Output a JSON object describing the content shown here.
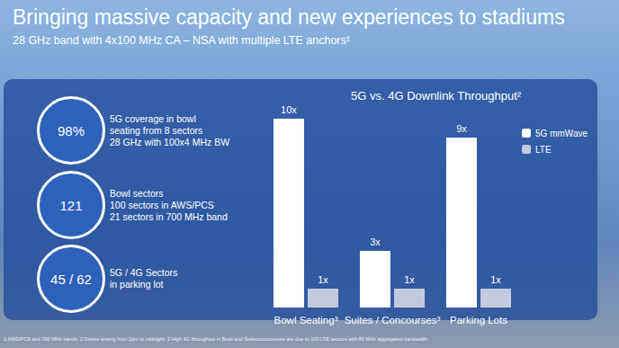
{
  "header": {
    "title": "Bringing massive capacity and new experiences to stadiums",
    "subtitle": "28 GHz band with 4x100 MHz CA – NSA with multiple LTE anchors¹"
  },
  "stats": [
    {
      "value": "98%",
      "lines": [
        "5G coverage in bowl",
        "seating from 8 sectors",
        "28 GHz with 100x4 MHz BW"
      ]
    },
    {
      "value": "121",
      "lines": [
        "Bowl sectors",
        "100 sectors in AWS/PCS",
        "21 sectors in 700 MHz band"
      ]
    },
    {
      "value": "45 / 62",
      "lines": [
        "5G / 4G Sectors",
        "in parking lot"
      ]
    }
  ],
  "footnote": "1 AWS/PCS and 700 MHz bands; 2 Device testing from 2pm to midnight; 3 High 4G throughput in Bowl and Suites/concourses are due to 100 LTE sectors with 80 MHz aggregated bandwidth",
  "chart_data": {
    "type": "bar",
    "title": "5G vs. 4G Downlink Throughput²",
    "categories": [
      "Bowl Seating³",
      "Suites / Concourses³",
      "Parking Lots"
    ],
    "series": [
      {
        "name": "5G mmWave",
        "color": "#ffffff",
        "values": [
          10,
          3,
          9
        ],
        "value_labels": [
          "10x",
          "3x",
          "9x"
        ]
      },
      {
        "name": "LTE",
        "color": "#c3cade",
        "values": [
          1,
          1,
          1
        ],
        "value_labels": [
          "1x",
          "1x",
          "1x"
        ]
      }
    ],
    "ylim": [
      0,
      10
    ],
    "data_labels": true,
    "legend": "top-right",
    "grid": false,
    "tick_labels": "x"
  }
}
